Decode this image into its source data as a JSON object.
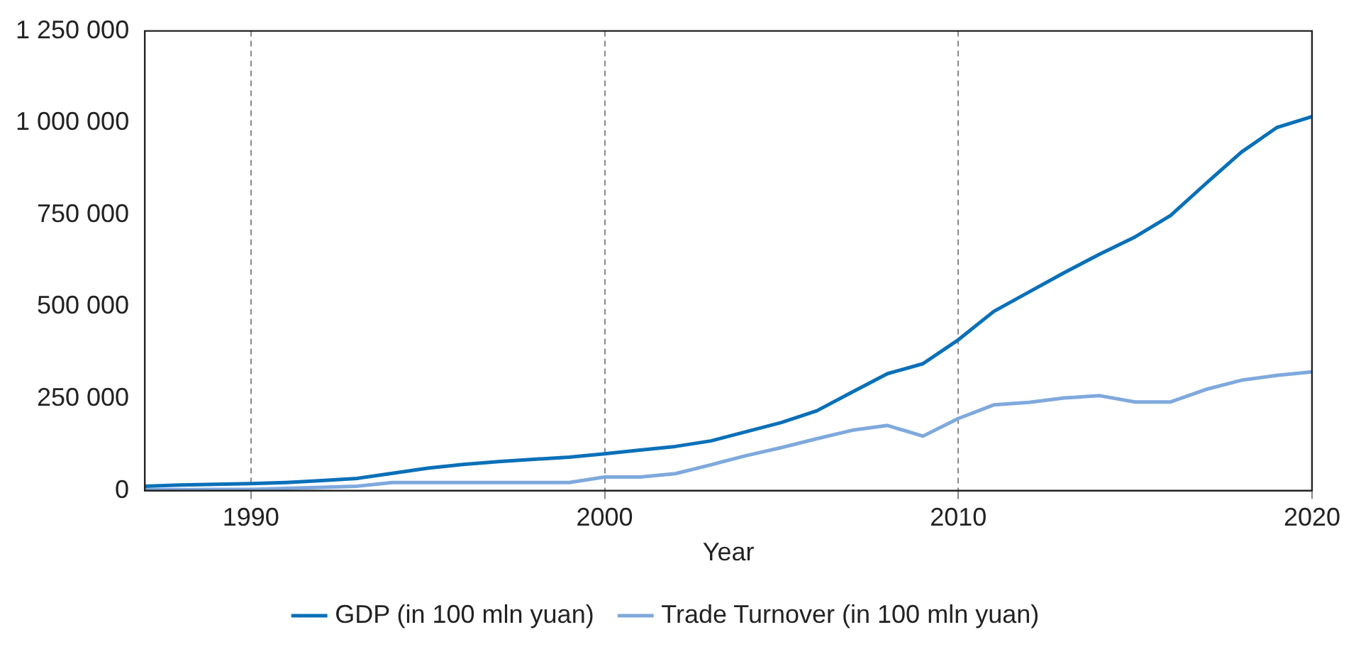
{
  "chart_data": {
    "type": "line",
    "xlabel": "Year",
    "x": [
      1987,
      1988,
      1989,
      1990,
      1991,
      1992,
      1993,
      1994,
      1995,
      1996,
      1997,
      1998,
      1999,
      2000,
      2001,
      2002,
      2003,
      2004,
      2005,
      2006,
      2007,
      2008,
      2009,
      2010,
      2011,
      2012,
      2013,
      2014,
      2015,
      2016,
      2017,
      2018,
      2019,
      2020
    ],
    "series": [
      {
        "name": "GDP (in 100 mln yuan)",
        "color": "#0a70b8",
        "values": [
          12000,
          15000,
          17000,
          19000,
          22000,
          27000,
          33000,
          47000,
          61000,
          71000,
          79000,
          85000,
          91000,
          100000,
          110000,
          120000,
          135000,
          160000,
          185000,
          217000,
          268000,
          318000,
          345000,
          410000,
          487000,
          540000,
          593000,
          643000,
          690000,
          748000,
          835000,
          920000,
          987000,
          1017000
        ]
      },
      {
        "name": "Trade Turnover (in 100 mln yuan)",
        "color": "#7fa9dd",
        "values": [
          2000,
          2500,
          3000,
          3000,
          6000,
          9000,
          12000,
          22000,
          22000,
          22000,
          22000,
          22000,
          22000,
          37000,
          37000,
          46000,
          70000,
          95000,
          117000,
          141000,
          164000,
          177000,
          148000,
          196000,
          233000,
          240000,
          252000,
          258000,
          241000,
          241000,
          275000,
          300000,
          313000,
          323000
        ]
      }
    ],
    "xlim": [
      1987,
      2020
    ],
    "xticks": [
      1990,
      2000,
      2010,
      2020
    ],
    "ylim": [
      0,
      1250000
    ],
    "yticks": [
      0,
      {
        "value": 250000,
        "label": "250 000"
      },
      {
        "value": 500000,
        "label": "500 000"
      },
      {
        "value": 750000,
        "label": "750 000"
      },
      {
        "value": 1000000,
        "label": "1 000 000"
      },
      {
        "value": 1250000,
        "label": "1 250 000"
      }
    ],
    "grid": "x",
    "legend": "bottom",
    "marker": "none",
    "line_style": "solid"
  }
}
